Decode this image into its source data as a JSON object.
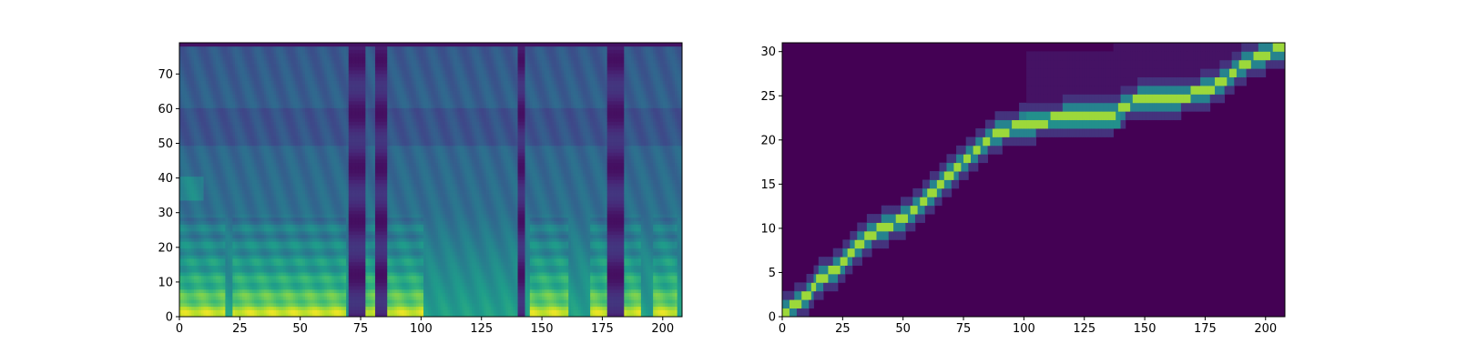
{
  "chart_data": [
    {
      "type": "heatmap",
      "title": "",
      "xlabel": "",
      "ylabel": "",
      "xlim": [
        0,
        208
      ],
      "ylim": [
        0,
        79
      ],
      "colormap": "viridis",
      "x_ticks": [
        0,
        25,
        50,
        75,
        100,
        125,
        150,
        175,
        200
      ],
      "y_ticks": [
        0,
        10,
        20,
        30,
        40,
        50,
        60,
        70
      ],
      "grid": false,
      "content": "mel-spectrogram",
      "bright_low_band_frames": [
        [
          0,
          18
        ],
        [
          22,
          68
        ],
        [
          76,
          80
        ],
        [
          86,
          100
        ],
        [
          145,
          160
        ],
        [
          170,
          176
        ],
        [
          184,
          190
        ],
        [
          196,
          205
        ]
      ],
      "silence_frames": [
        [
          70,
          76
        ],
        [
          81,
          85
        ],
        [
          140,
          142
        ],
        [
          177,
          183
        ]
      ]
    },
    {
      "type": "heatmap",
      "title": "",
      "xlabel": "",
      "ylabel": "",
      "xlim": [
        0,
        208
      ],
      "ylim": [
        0,
        31
      ],
      "colormap": "viridis",
      "x_ticks": [
        0,
        25,
        50,
        75,
        100,
        125,
        150,
        175,
        200
      ],
      "y_ticks": [
        0,
        5,
        10,
        15,
        20,
        25,
        30
      ],
      "grid": false,
      "content": "attention-alignment",
      "alignment_path": [
        [
          0,
          0
        ],
        [
          5,
          1
        ],
        [
          10,
          2
        ],
        [
          15,
          4
        ],
        [
          22,
          5
        ],
        [
          28,
          7
        ],
        [
          35,
          9
        ],
        [
          42,
          10
        ],
        [
          50,
          11
        ],
        [
          58,
          13
        ],
        [
          65,
          15
        ],
        [
          72,
          17
        ],
        [
          80,
          19
        ],
        [
          88,
          21
        ],
        [
          100,
          22
        ],
        [
          120,
          23
        ],
        [
          136,
          23
        ],
        [
          140,
          24
        ],
        [
          148,
          25
        ],
        [
          162,
          25
        ],
        [
          175,
          26
        ],
        [
          182,
          27
        ],
        [
          190,
          29
        ],
        [
          198,
          30
        ],
        [
          206,
          31
        ]
      ]
    }
  ]
}
